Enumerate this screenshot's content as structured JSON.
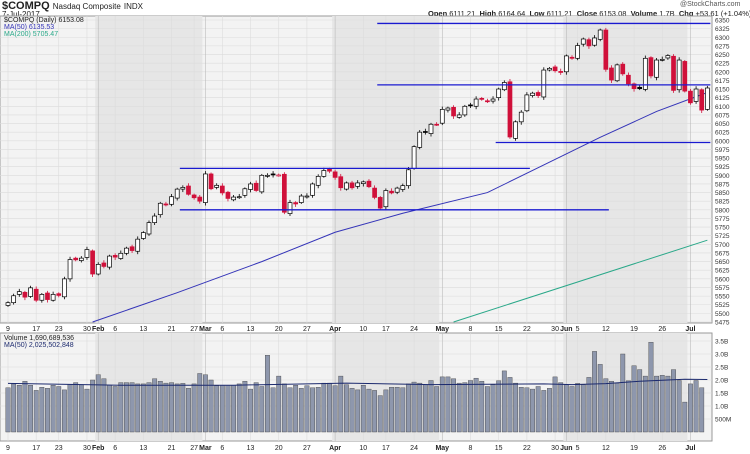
{
  "header": {
    "symbol": "$COMPQ",
    "name": "Nasdaq Composite",
    "exchange": "INDX",
    "date": "7-Jul-2017",
    "brand": "@StockCharts.com",
    "open_label": "Open",
    "open": "6111.21",
    "high_label": "High",
    "high": "6164.64",
    "low_label": "Low",
    "low": "6111.21",
    "close_label": "Close",
    "close": "6153.08",
    "volume_label": "Volume",
    "volume": "1.7B",
    "chg_label": "Chg",
    "chg": "+53.61 (+1.04%)"
  },
  "legend": {
    "price": "$COMPQ (Daily) 6153.08",
    "ma50": "MA(50) 6135.53",
    "ma200": "MA(200) 5705.47",
    "volume": "Volume 1,690,689,536",
    "vol_ma": "MA(50) 2,025,502,848"
  },
  "chart_data": [
    {
      "type": "candlestick",
      "title": "$COMPQ (Daily)",
      "ylim": [
        5475,
        6350
      ],
      "y_ticks": [
        6350,
        6325,
        6300,
        6275,
        6250,
        6225,
        6200,
        6175,
        6150,
        6125,
        6100,
        6075,
        6050,
        6025,
        6000,
        5975,
        5950,
        5925,
        5900,
        5875,
        5850,
        5825,
        5800,
        5775,
        5750,
        5725,
        5700,
        5675,
        5650,
        5625,
        5600,
        5575,
        5550,
        5525,
        5500,
        5475
      ],
      "x_ticks": [
        {
          "i": 0,
          "label": "9"
        },
        {
          "i": 5,
          "label": "17"
        },
        {
          "i": 9,
          "label": "23"
        },
        {
          "i": 14,
          "label": "30"
        },
        {
          "i": 16,
          "label": "Feb"
        },
        {
          "i": 19,
          "label": "6"
        },
        {
          "i": 24,
          "label": "13"
        },
        {
          "i": 29,
          "label": "21"
        },
        {
          "i": 33,
          "label": "27"
        },
        {
          "i": 35,
          "label": "Mar"
        },
        {
          "i": 38,
          "label": "6"
        },
        {
          "i": 43,
          "label": "13"
        },
        {
          "i": 48,
          "label": "20"
        },
        {
          "i": 53,
          "label": "27"
        },
        {
          "i": 58,
          "label": "Apr"
        },
        {
          "i": 63,
          "label": "10"
        },
        {
          "i": 67,
          "label": "17"
        },
        {
          "i": 72,
          "label": "24"
        },
        {
          "i": 77,
          "label": "May"
        },
        {
          "i": 82,
          "label": "8"
        },
        {
          "i": 87,
          "label": "15"
        },
        {
          "i": 92,
          "label": "22"
        },
        {
          "i": 97,
          "label": "30"
        },
        {
          "i": 99,
          "label": "Jun"
        },
        {
          "i": 101,
          "label": "5"
        },
        {
          "i": 106,
          "label": "12"
        },
        {
          "i": 111,
          "label": "19"
        },
        {
          "i": 116,
          "label": "26"
        },
        {
          "i": 121,
          "label": "Jul"
        }
      ],
      "close": [
        5531,
        5551,
        5563,
        5547,
        5574,
        5538,
        5555,
        5540,
        5555,
        5552,
        5600,
        5656,
        5655,
        5660,
        5685,
        5614,
        5642,
        5636,
        5666,
        5663,
        5674,
        5689,
        5682,
        5715,
        5734,
        5763,
        5782,
        5819,
        5814,
        5838,
        5860,
        5865,
        5845,
        5835,
        5825,
        5904,
        5861,
        5871,
        5849,
        5833,
        5837,
        5838,
        5861,
        5875,
        5856,
        5900,
        5900,
        5902,
        5901,
        5793,
        5821,
        5817,
        5840,
        5840,
        5875,
        5897,
        5914,
        5912,
        5894,
        5864,
        5878,
        5864,
        5878,
        5881,
        5867,
        5836,
        5805,
        5856,
        5849,
        5863,
        5870,
        5916,
        5983,
        6025,
        6025,
        6048,
        6047,
        6091,
        6095,
        6072,
        6075,
        6100,
        6102,
        6121,
        6120,
        6115,
        6121,
        6150,
        6169,
        6011,
        6055,
        6083,
        6133,
        6138,
        6131,
        6205,
        6210,
        6203,
        6198,
        6246,
        6239,
        6276,
        6295,
        6275,
        6298,
        6321,
        6207,
        6176,
        6220,
        6194,
        6165,
        6151,
        6151,
        6239,
        6188,
        6234,
        6236,
        6247,
        6146,
        6234,
        6144,
        6110,
        6150,
        6089,
        6153
      ],
      "ma50": [
        [
          15,
          5475
        ],
        [
          30,
          5560
        ],
        [
          45,
          5650
        ],
        [
          58,
          5735
        ],
        [
          70,
          5790
        ],
        [
          85,
          5850
        ],
        [
          95,
          5930
        ],
        [
          105,
          6010
        ],
        [
          115,
          6085
        ],
        [
          124,
          6140
        ]
      ],
      "ma200": [
        [
          79,
          5475
        ],
        [
          124,
          5712
        ]
      ],
      "annotations": [
        {
          "price": 6340,
          "from": 66,
          "to": 124
        },
        {
          "price": 6162,
          "from": 66,
          "to": 124
        },
        {
          "price": 5995,
          "from": 87,
          "to": 124
        },
        {
          "price": 5920,
          "from": 31,
          "to": 92
        },
        {
          "price": 5800,
          "from": 31,
          "to": 106
        }
      ],
      "colors": {
        "up": "#000000",
        "down": "#d0103a",
        "ma50": "#3434b8",
        "ma200": "#2aa889",
        "annot": "#1a1ad0"
      }
    },
    {
      "type": "bar",
      "title": "Volume",
      "ylim": [
        0,
        3.6
      ],
      "y_ticks": [
        {
          "v": 3.5,
          "label": "3.5B"
        },
        {
          "v": 3.0,
          "label": "3.0B"
        },
        {
          "v": 2.5,
          "label": "2.5B"
        },
        {
          "v": 2.0,
          "label": "2.0B"
        },
        {
          "v": 1.5,
          "label": "1.5B"
        },
        {
          "v": 1.0,
          "label": "1.0B"
        },
        {
          "v": 0.5,
          "label": "500M"
        }
      ],
      "values": [
        1.7,
        1.85,
        1.8,
        1.95,
        1.8,
        1.6,
        1.72,
        1.68,
        1.8,
        1.75,
        1.62,
        1.83,
        1.9,
        1.82,
        1.65,
        2.0,
        2.2,
        2.05,
        1.8,
        1.75,
        1.9,
        1.9,
        1.9,
        1.85,
        1.85,
        1.9,
        2.05,
        1.95,
        1.88,
        1.9,
        1.85,
        1.87,
        1.68,
        1.85,
        2.25,
        2.2,
        2.0,
        1.78,
        1.8,
        1.8,
        1.8,
        1.85,
        1.95,
        1.65,
        1.9,
        1.75,
        2.95,
        1.7,
        2.15,
        1.85,
        1.7,
        1.8,
        1.68,
        1.78,
        1.7,
        1.72,
        1.88,
        1.88,
        1.78,
        2.15,
        1.82,
        1.68,
        1.62,
        1.8,
        1.65,
        1.6,
        1.4,
        1.62,
        1.72,
        1.72,
        1.7,
        1.85,
        1.92,
        1.88,
        1.82,
        1.98,
        1.75,
        2.12,
        2.12,
        2.05,
        1.88,
        1.9,
        1.98,
        2.07,
        1.95,
        1.75,
        1.82,
        1.97,
        2.35,
        2.1,
        1.88,
        1.72,
        1.7,
        1.65,
        1.75,
        1.6,
        1.68,
        2.12,
        1.9,
        1.82,
        1.75,
        1.87,
        1.82,
        2.1,
        3.1,
        2.6,
        2.05,
        1.95,
        1.88,
        3.0,
        1.97,
        2.55,
        2.4,
        2.15,
        3.45,
        2.15,
        2.18,
        2.15,
        2.4,
        1.98,
        1.15,
        1.85,
        1.98,
        1.7
      ],
      "ma50": [
        [
          0,
          1.87
        ],
        [
          20,
          1.8
        ],
        [
          40,
          1.8
        ],
        [
          60,
          1.88
        ],
        [
          75,
          1.82
        ],
        [
          95,
          1.85
        ],
        [
          100,
          1.82
        ],
        [
          106,
          1.86
        ],
        [
          112,
          1.95
        ],
        [
          120,
          2.03
        ],
        [
          124,
          2.02
        ]
      ],
      "colors": {
        "bar": "#8e97ad",
        "ma": "#1c2a6e"
      }
    }
  ]
}
